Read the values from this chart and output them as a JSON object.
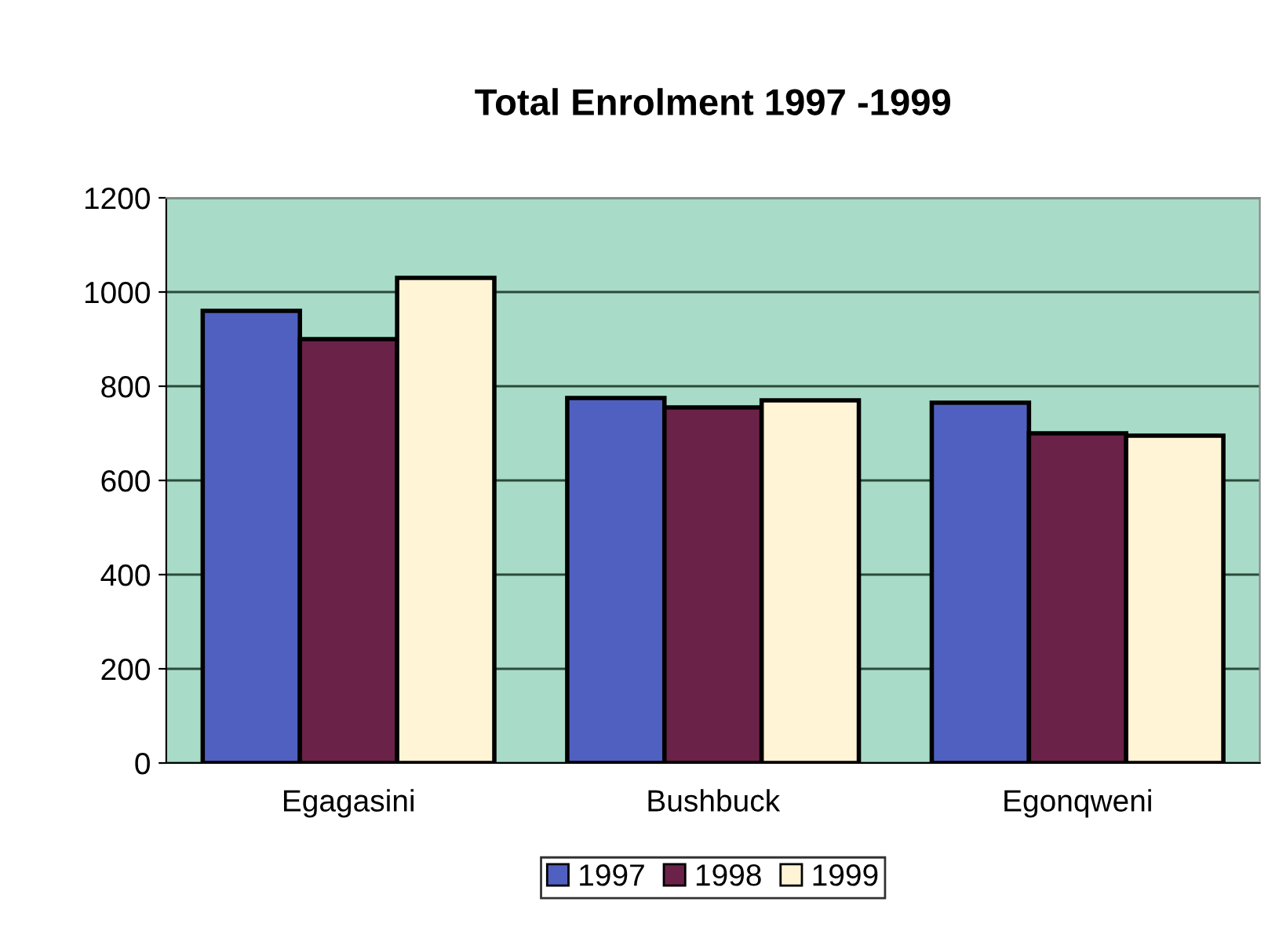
{
  "chart_data": {
    "type": "bar",
    "title": "Total Enrolment 1997 -1999",
    "categories": [
      "Egagasini",
      "Bushbuck",
      "Egonqweni"
    ],
    "series": [
      {
        "name": "1997",
        "color": "#5060c0",
        "values": [
          960,
          775,
          765
        ]
      },
      {
        "name": "1998",
        "color": "#6b2248",
        "values": [
          900,
          755,
          700
        ]
      },
      {
        "name": "1999",
        "color": "#fff4d6",
        "values": [
          1030,
          770,
          695
        ]
      }
    ],
    "ylim": [
      0,
      1200
    ],
    "yticks": [
      0,
      200,
      400,
      600,
      800,
      1000,
      1200
    ],
    "grid": "y",
    "legend": "bottom"
  }
}
